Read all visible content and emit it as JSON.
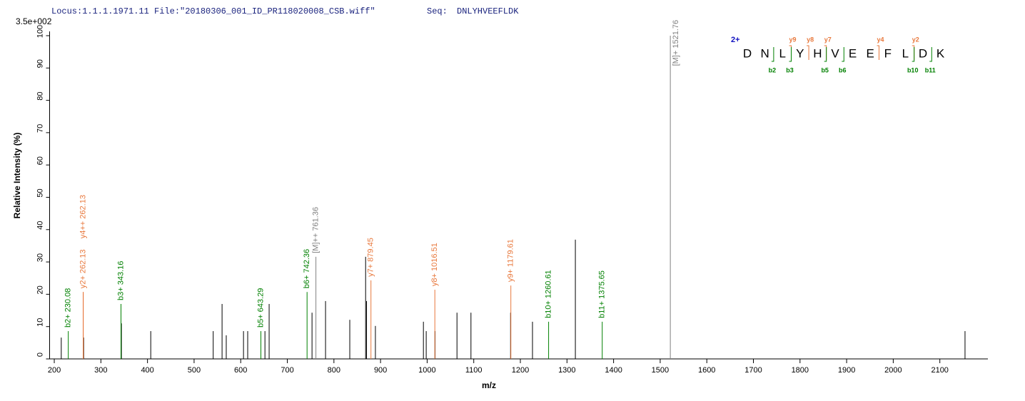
{
  "chart_data": {
    "type": "spectrum",
    "locus": "Locus:1.1.1.1971.11 File:\"20180306_001_ID_PR118020008_CSB.wiff\"",
    "seq_label": "Seq:",
    "seq": "DNLYHVEEFLDK",
    "scale_label": "3.5e+002",
    "xlabel": "m/z",
    "ylabel": "Relative   Intensity (%)",
    "xlim": [
      190,
      2200
    ],
    "ylim": [
      0,
      100
    ],
    "xticks": [
      200,
      300,
      400,
      500,
      600,
      700,
      800,
      900,
      1000,
      1100,
      1200,
      1300,
      1400,
      1500,
      1600,
      1700,
      1800,
      1900,
      2000,
      2100
    ],
    "yticks": [
      0,
      10,
      20,
      30,
      40,
      50,
      60,
      70,
      80,
      90,
      100
    ],
    "series": [
      {
        "color": "#000000",
        "x": [
          215,
          263,
          344,
          407,
          541,
          560,
          569,
          606,
          615,
          652,
          661,
          753,
          782,
          834,
          868,
          870,
          889,
          992,
          998,
          1017,
          1064,
          1094,
          1179,
          1226,
          1318,
          2154
        ],
        "values": [
          6.6,
          6.6,
          11,
          8.6,
          8.6,
          17,
          7.3,
          8.6,
          8.6,
          8.6,
          17,
          14.3,
          17.9,
          12.1,
          31.6,
          17.9,
          10.2,
          11.5,
          8.6,
          8.6,
          14.3,
          14.3,
          14.3,
          11.5,
          36.9,
          8.6
        ]
      },
      {
        "color": "#008000",
        "x": [
          230.08,
          343.16,
          643.29,
          742.36,
          1260.61,
          1375.65
        ],
        "values": [
          8.6,
          17,
          8.6,
          20.7,
          11.5,
          11.5
        ],
        "labels": [
          "b2+ 230.08",
          "b3+ 343.16",
          "b5+ 643.29",
          "b6+ 742.36",
          "b10+ 1260.61",
          "b11+ 1375.65"
        ]
      },
      {
        "color": "#e8783c",
        "x": [
          262.13,
          262.13,
          879.45,
          1016.51,
          1179.61
        ],
        "values": [
          20.7,
          20.7,
          24.3,
          21.4,
          22.7
        ],
        "labels": [
          "y2+ 262.13",
          "y4++ 262.13",
          "y7+ 879.45",
          "y8+ 1016.51",
          "y9+ 1179.61"
        ]
      },
      {
        "color": "#808080",
        "x": [
          761.36,
          1521.76
        ],
        "values": [
          31.6,
          100
        ],
        "labels": [
          "[M]++ 761.36",
          "[M]+ 1521.76"
        ]
      }
    ],
    "sequence": {
      "charge": "2+",
      "residues": [
        "D",
        "N",
        "L",
        "Y",
        "H",
        "V",
        "E",
        "E",
        "F",
        "L",
        "D",
        "K"
      ],
      "y_ions": [
        "y9",
        "y8",
        "y7",
        "y4",
        "y2"
      ],
      "b_ions": [
        "b2",
        "b3",
        "b5",
        "b6",
        "b10",
        "b11"
      ]
    }
  }
}
